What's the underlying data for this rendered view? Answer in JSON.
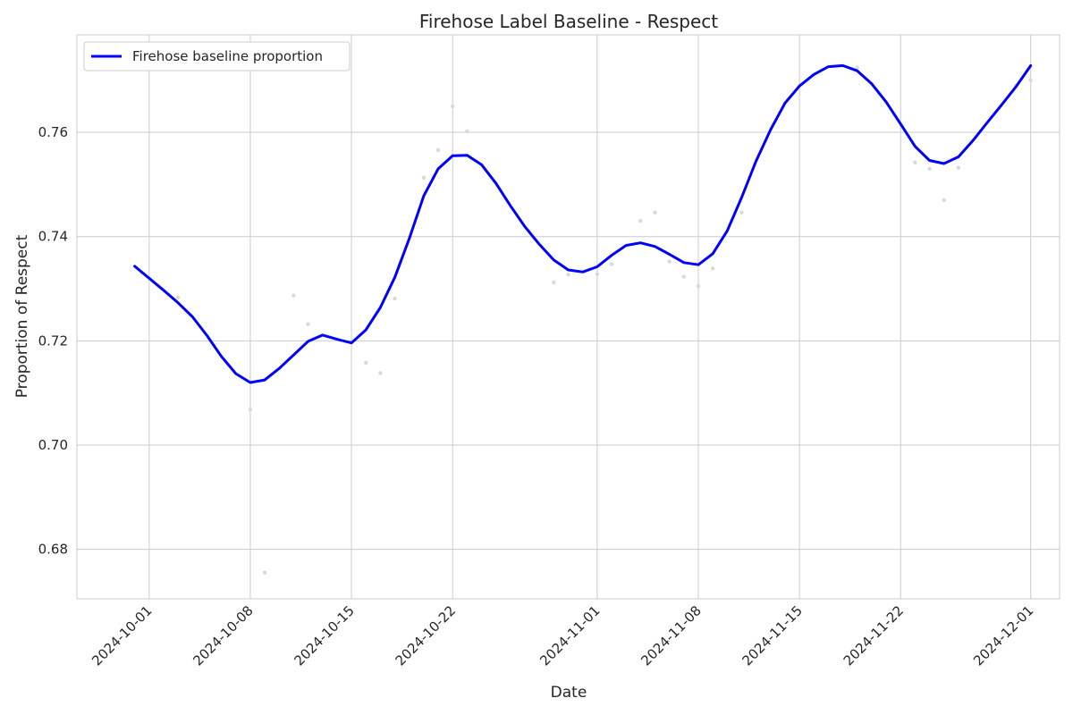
{
  "chart_data": {
    "type": "line",
    "title": "Firehose Label Baseline - Respect",
    "xlabel": "Date",
    "ylabel": "Proportion of Respect",
    "xlim": [
      "2024-09-26",
      "2024-12-03"
    ],
    "ylim": [
      0.6705,
      0.7787
    ],
    "x_ticks": [
      "2024-10-01",
      "2024-10-08",
      "2024-10-15",
      "2024-10-22",
      "2024-11-01",
      "2024-11-08",
      "2024-11-15",
      "2024-11-22",
      "2024-12-01"
    ],
    "y_ticks": [
      0.68,
      0.7,
      0.72,
      0.74,
      0.76
    ],
    "y_tick_labels": [
      "0.68",
      "0.70",
      "0.72",
      "0.74",
      "0.76"
    ],
    "grid": true,
    "legend_position": "top-left",
    "series": [
      {
        "name": "Firehose baseline proportion",
        "color": "#0000ff",
        "x": [
          "2024-09-30",
          "2024-10-01",
          "2024-10-02",
          "2024-10-03",
          "2024-10-04",
          "2024-10-05",
          "2024-10-06",
          "2024-10-07",
          "2024-10-08",
          "2024-10-09",
          "2024-10-10",
          "2024-10-11",
          "2024-10-12",
          "2024-10-13",
          "2024-10-14",
          "2024-10-15",
          "2024-10-16",
          "2024-10-17",
          "2024-10-18",
          "2024-10-19",
          "2024-10-20",
          "2024-10-21",
          "2024-10-22",
          "2024-10-23",
          "2024-10-24",
          "2024-10-25",
          "2024-10-26",
          "2024-10-27",
          "2024-10-28",
          "2024-10-29",
          "2024-10-30",
          "2024-10-31",
          "2024-11-01",
          "2024-11-02",
          "2024-11-03",
          "2024-11-04",
          "2024-11-05",
          "2024-11-06",
          "2024-11-07",
          "2024-11-08",
          "2024-11-09",
          "2024-11-10",
          "2024-11-11",
          "2024-11-12",
          "2024-11-13",
          "2024-11-14",
          "2024-11-15",
          "2024-11-16",
          "2024-11-17",
          "2024-11-18",
          "2024-11-19",
          "2024-11-20",
          "2024-11-21",
          "2024-11-22",
          "2024-11-23",
          "2024-11-24",
          "2024-11-25",
          "2024-11-26",
          "2024-11-27",
          "2024-11-28",
          "2024-11-29",
          "2024-11-30",
          "2024-12-01"
        ],
        "y": [
          0.7343,
          0.732,
          0.7297,
          0.7273,
          0.7246,
          0.721,
          0.717,
          0.7137,
          0.712,
          0.7125,
          0.7147,
          0.7173,
          0.7199,
          0.7211,
          0.7203,
          0.7196,
          0.7221,
          0.7264,
          0.7322,
          0.7396,
          0.7478,
          0.753,
          0.7555,
          0.7556,
          0.7538,
          0.7502,
          0.7459,
          0.7419,
          0.7385,
          0.7355,
          0.7336,
          0.7332,
          0.7342,
          0.7364,
          0.7383,
          0.7388,
          0.7381,
          0.7366,
          0.735,
          0.7346,
          0.7367,
          0.7411,
          0.7475,
          0.7545,
          0.7605,
          0.7656,
          0.7689,
          0.7711,
          0.7726,
          0.7728,
          0.7718,
          0.7693,
          0.7658,
          0.7616,
          0.7573,
          0.7546,
          0.754,
          0.7553,
          0.7584,
          0.7619,
          0.7653,
          0.7688,
          0.7728
        ]
      },
      {
        "name": "",
        "color": "#d9d9d9",
        "x": [
          "2024-10-03",
          "2024-10-08",
          "2024-10-09",
          "2024-10-11",
          "2024-10-12",
          "2024-10-16",
          "2024-10-17",
          "2024-10-18",
          "2024-10-20",
          "2024-10-21",
          "2024-10-22",
          "2024-10-23",
          "2024-10-29",
          "2024-10-30",
          "2024-11-01",
          "2024-11-02",
          "2024-11-04",
          "2024-11-05",
          "2024-11-06",
          "2024-11-07",
          "2024-11-08",
          "2024-11-09",
          "2024-11-11",
          "2024-11-19",
          "2024-11-23",
          "2024-11-24",
          "2024-11-25",
          "2024-11-26",
          "2024-11-30",
          "2024-12-01"
        ],
        "y": [
          0.7283,
          0.7068,
          0.6755,
          0.7287,
          0.7232,
          0.7158,
          0.7138,
          0.7281,
          0.7513,
          0.7566,
          0.765,
          0.7602,
          0.7312,
          0.7327,
          0.7328,
          0.7347,
          0.743,
          0.7446,
          0.7352,
          0.7323,
          0.7305,
          0.7339,
          0.7446,
          0.7724,
          0.7542,
          0.753,
          0.747,
          0.7532,
          0.769,
          0.77
        ]
      }
    ]
  }
}
